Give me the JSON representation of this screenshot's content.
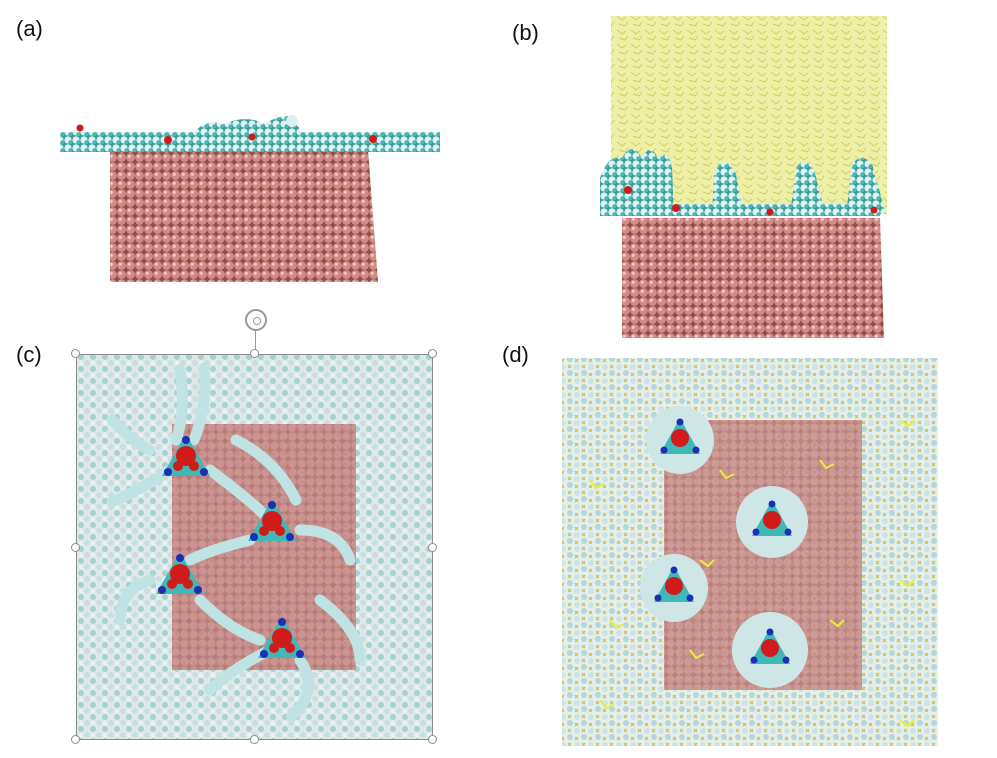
{
  "panels": {
    "a": {
      "label": "(a)"
    },
    "b": {
      "label": "(b)"
    },
    "c": {
      "label": "(c)"
    },
    "d": {
      "label": "(d)"
    }
  },
  "colors": {
    "substrate": "#d38b88",
    "substrate_shade": "#8f4e4c",
    "carbon": "#3fb8b6",
    "hydrogen": "#e4f2f2",
    "oxygen": "#d11b1b",
    "nitrogen": "#1b2fb5",
    "solvent": "#e8ea8a",
    "solvent_dark": "#c9c431",
    "selection": "#8c8c8c"
  },
  "icons": {
    "rotate": "rotate-handle-icon",
    "resize": "resize-handle"
  }
}
